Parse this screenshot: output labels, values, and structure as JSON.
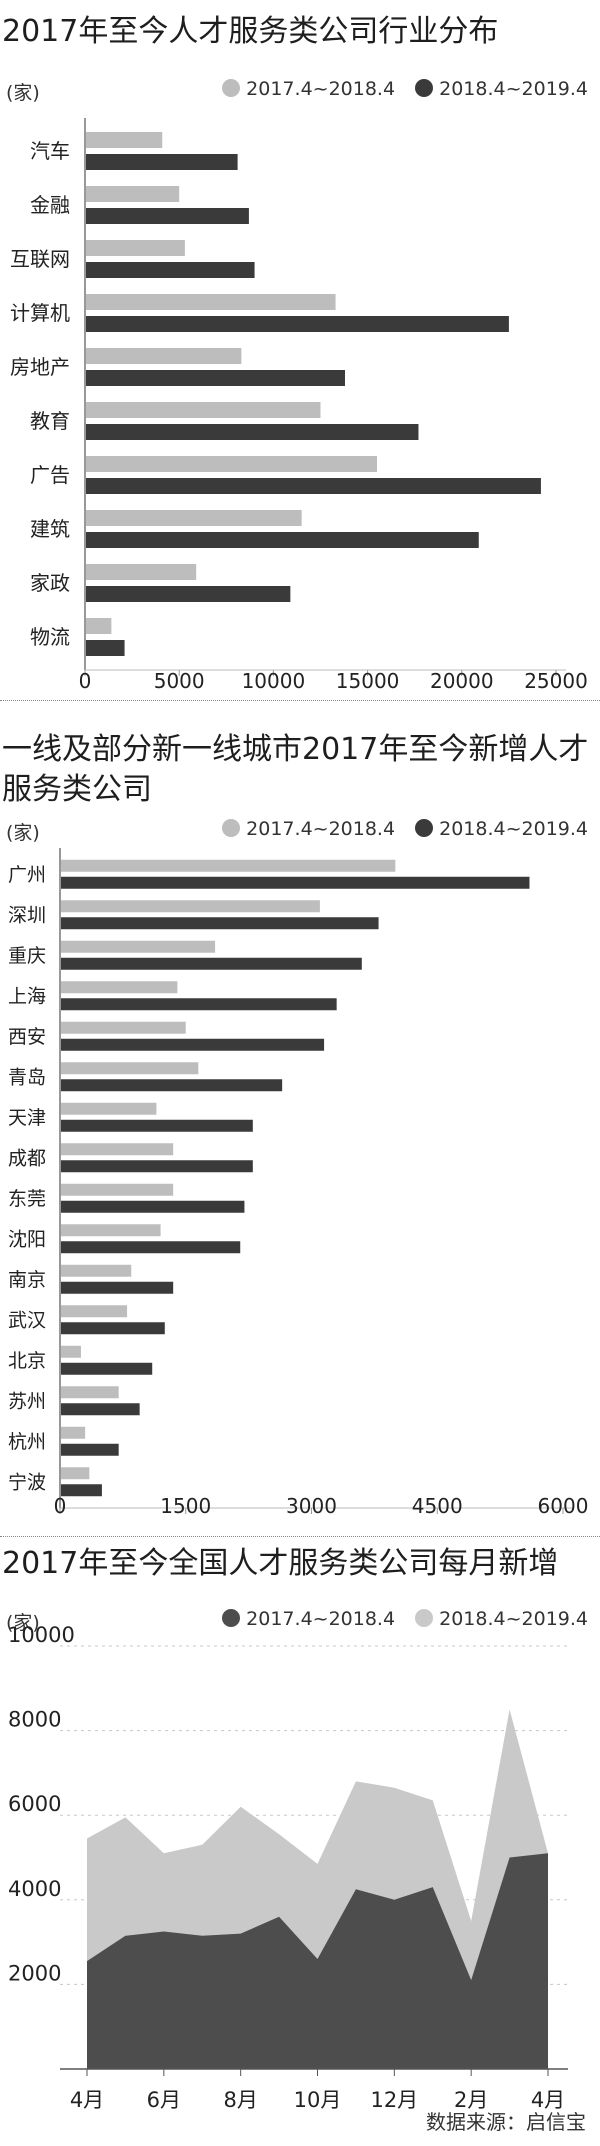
{
  "chart_data": [
    {
      "type": "bar",
      "orientation": "horizontal",
      "title": "2017年至今人才服务类公司行业分布",
      "unit": "(家)",
      "categories": [
        "汽车",
        "金融",
        "互联网",
        "计算机",
        "房地产",
        "教育",
        "广告",
        "建筑",
        "家政",
        "物流"
      ],
      "series": [
        {
          "name": "2017.4~2018.4",
          "color": "#bdbdbd",
          "values": [
            4100,
            5000,
            5300,
            13300,
            8300,
            12500,
            15500,
            11500,
            5900,
            1400
          ]
        },
        {
          "name": "2018.4~2019.4",
          "color": "#3a3a3a",
          "values": [
            8100,
            8700,
            9000,
            22500,
            13800,
            17700,
            24200,
            20900,
            10900,
            2100
          ]
        }
      ],
      "xlim": [
        0,
        25000
      ],
      "xticks": [
        "0",
        "5000",
        "10000",
        "15000",
        "20000",
        "25000"
      ],
      "xtick_values": [
        0,
        5000,
        10000,
        15000,
        20000,
        25000
      ]
    },
    {
      "type": "bar",
      "orientation": "horizontal",
      "title": "一线及部分新一线城市2017年至今新增人才服务类公司",
      "unit": "(家)",
      "categories": [
        "广州",
        "深圳",
        "重庆",
        "上海",
        "西安",
        "青岛",
        "天津",
        "成都",
        "东莞",
        "沈阳",
        "南京",
        "武汉",
        "北京",
        "苏州",
        "杭州",
        "宁波"
      ],
      "series": [
        {
          "name": "2017.4~2018.4",
          "color": "#bdbdbd",
          "values": [
            4000,
            3100,
            1850,
            1400,
            1500,
            1650,
            1150,
            1350,
            1350,
            1200,
            850,
            800,
            250,
            700,
            300,
            350
          ]
        },
        {
          "name": "2018.4~2019.4",
          "color": "#3a3a3a",
          "values": [
            5600,
            3800,
            3600,
            3300,
            3150,
            2650,
            2300,
            2300,
            2200,
            2150,
            1350,
            1250,
            1100,
            950,
            700,
            500
          ]
        }
      ],
      "xlim": [
        0,
        6000
      ],
      "xticks": [
        "0",
        "1500",
        "3000",
        "4500",
        "6000"
      ],
      "xtick_values": [
        0,
        1500,
        3000,
        4500,
        6000
      ]
    },
    {
      "type": "area",
      "title": "2017年至今全国人才服务类公司每月新增",
      "unit": "(家)",
      "x": [
        "4月",
        "5月",
        "6月",
        "7月",
        "8月",
        "9月",
        "10月",
        "11月",
        "12月",
        "1月",
        "2月",
        "3月",
        "4月"
      ],
      "xticks": [
        "4月",
        "6月",
        "8月",
        "10月",
        "12月",
        "2月",
        "4月"
      ],
      "xtick_index": [
        0,
        2,
        4,
        6,
        8,
        10,
        12
      ],
      "series": [
        {
          "name": "2017.4~2018.4",
          "color": "#4d4d4d",
          "values": [
            2550,
            3150,
            3250,
            3150,
            3200,
            3600,
            2600,
            4250,
            4000,
            4300,
            2100,
            5000,
            5100
          ]
        },
        {
          "name": "2018.4~2019.4",
          "color": "#c9c9c9",
          "values": [
            5450,
            5950,
            5100,
            5300,
            6200,
            5550,
            4850,
            6800,
            6650,
            6350,
            3500,
            8500,
            5100
          ]
        }
      ],
      "ylim": [
        0,
        10000
      ],
      "yticks": [
        "2000",
        "4000",
        "6000",
        "8000",
        "10000"
      ],
      "ytick_values": [
        2000,
        4000,
        6000,
        8000,
        10000
      ]
    }
  ],
  "footer": {
    "source": "数据来源：启信宝"
  }
}
